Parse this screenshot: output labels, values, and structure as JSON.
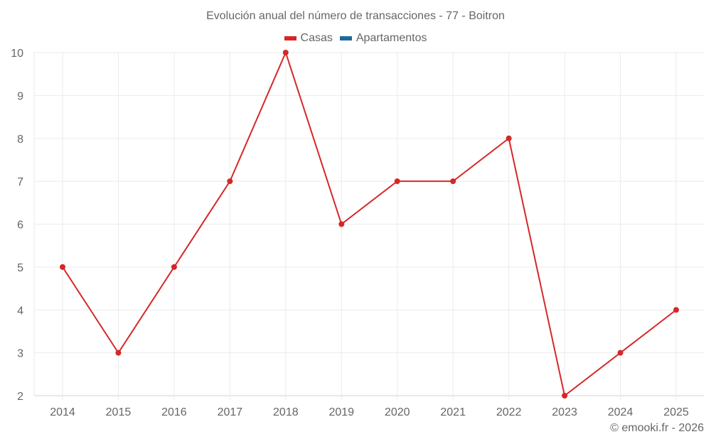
{
  "chart_data": {
    "type": "line",
    "title": "Evolución anual del número de transacciones - 77 - Boitron",
    "categories": [
      "2014",
      "2015",
      "2016",
      "2017",
      "2018",
      "2019",
      "2020",
      "2021",
      "2022",
      "2023",
      "2024",
      "2025"
    ],
    "series": [
      {
        "name": "Casas",
        "color": "#d62728",
        "values": [
          5,
          3,
          5,
          7,
          10,
          6,
          7,
          7,
          8,
          2,
          3,
          4
        ]
      },
      {
        "name": "Apartamentos",
        "color": "#1f6a9c",
        "values": []
      }
    ],
    "xlabel": "",
    "ylabel": "",
    "ylim": [
      2,
      10
    ],
    "yticks": [
      2,
      3,
      4,
      5,
      6,
      7,
      8,
      9,
      10
    ],
    "grid": true,
    "legend_position": "top"
  },
  "header": {
    "title": "Evolución anual del número de transacciones - 77 - Boitron"
  },
  "legend": {
    "items": [
      {
        "label": "Casas",
        "color": "#d62728"
      },
      {
        "label": "Apartamentos",
        "color": "#1f6a9c"
      }
    ]
  },
  "footer": {
    "credit": "© emooki.fr - 2026"
  }
}
